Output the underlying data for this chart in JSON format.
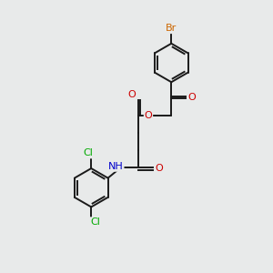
{
  "bg_color": "#e8eaea",
  "bond_color": "#1a1a1a",
  "atom_colors": {
    "Br": "#cc6600",
    "O": "#cc0000",
    "N": "#0000cc",
    "Cl": "#00aa00",
    "C": "#1a1a1a",
    "H": "#1a1a1a"
  },
  "lw": 1.4,
  "fs": 7.5
}
